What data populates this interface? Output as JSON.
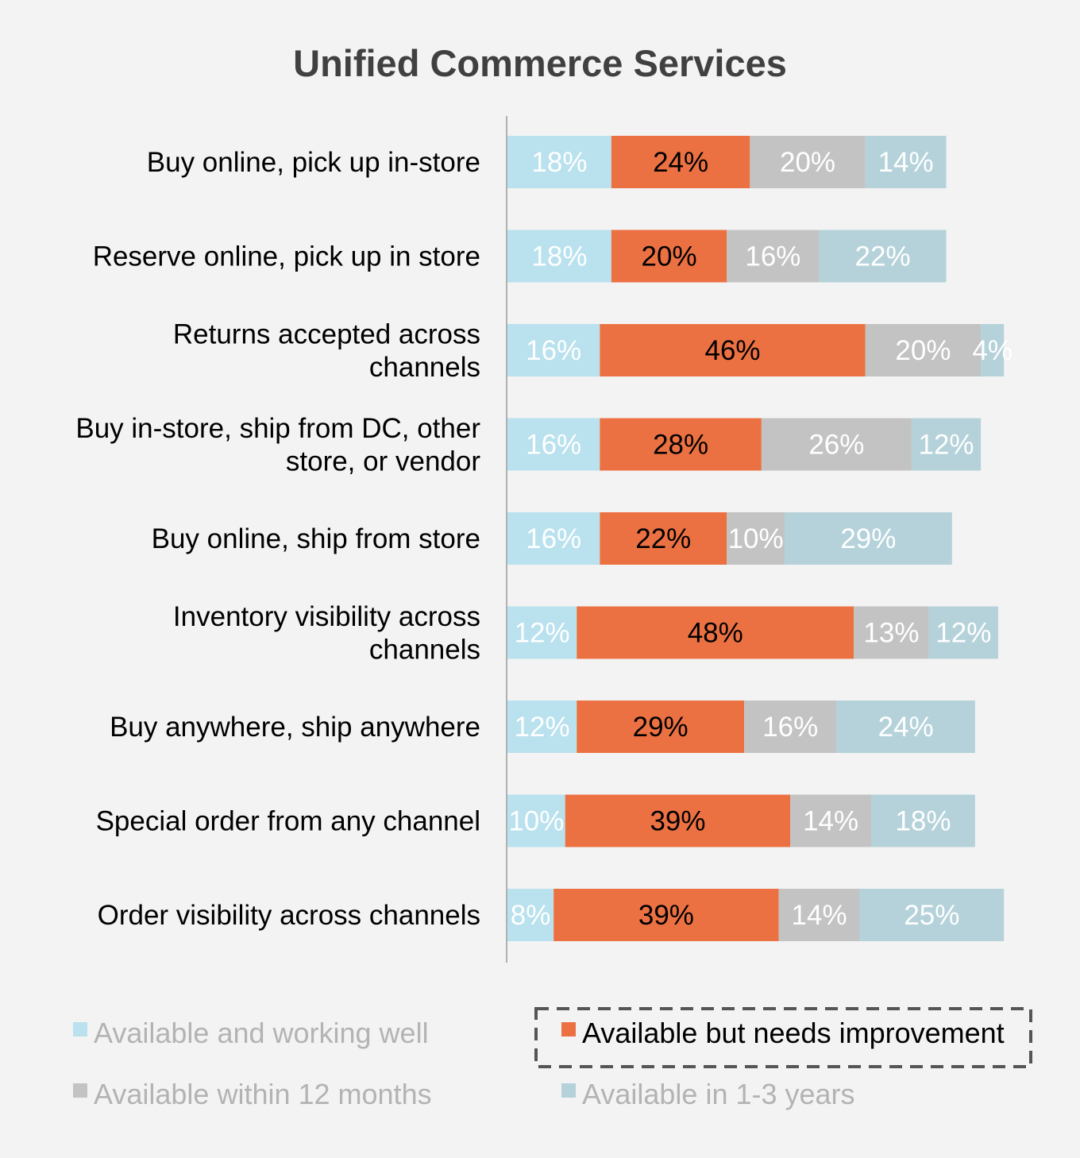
{
  "chart_data": {
    "type": "bar",
    "orientation": "horizontal",
    "stacked": true,
    "title": "Unified Commerce Services",
    "categories": [
      "Buy online, pick up in-store",
      "Reserve online, pick up in store",
      "Returns accepted across channels",
      "Buy in-store, ship from DC, other store, or vendor",
      "Buy online, ship from store",
      "Inventory visibility across channels",
      "Buy anywhere, ship anywhere",
      "Special order from any channel",
      "Order visibility across channels"
    ],
    "category_lines": [
      [
        "Buy online, pick up in-store"
      ],
      [
        "Reserve online, pick up in store"
      ],
      [
        "Returns accepted across",
        "channels"
      ],
      [
        "Buy in-store, ship from DC, other",
        "store, or vendor"
      ],
      [
        "Buy online, ship from store"
      ],
      [
        "Inventory visibility across",
        "channels"
      ],
      [
        "Buy anywhere, ship anywhere"
      ],
      [
        "Special order from any channel"
      ],
      [
        "Order visibility across channels"
      ]
    ],
    "series": [
      {
        "name": "Available and working well",
        "color": "#b9e1ee",
        "label_color": "#ffffff",
        "values": [
          18,
          18,
          16,
          16,
          16,
          12,
          12,
          10,
          8
        ],
        "labels": [
          "18%",
          "18%",
          "16%",
          "16%",
          "16%",
          "12%",
          "12%",
          "10%",
          "8%"
        ]
      },
      {
        "name": "Available but needs improvement",
        "color": "#ec7142",
        "label_color": "#000000",
        "values": [
          24,
          20,
          46,
          28,
          22,
          48,
          29,
          39,
          39
        ],
        "labels": [
          "24%",
          "20%",
          "46%",
          "28%",
          "22%",
          "48%",
          "29%",
          "39%",
          "39%"
        ]
      },
      {
        "name": "Available within 12 months",
        "color": "#c3c3c3",
        "label_color": "#ffffff",
        "values": [
          20,
          16,
          20,
          26,
          10,
          13,
          16,
          14,
          14
        ],
        "labels": [
          "20%",
          "16%",
          "20%",
          "26%",
          "10%",
          "13%",
          "16%",
          "14%",
          "14%"
        ]
      },
      {
        "name": "Available in 1-3 years",
        "color": "#b5d2da",
        "label_color": "#ffffff",
        "values": [
          14,
          22,
          4,
          12,
          29,
          12,
          24,
          18,
          25
        ],
        "labels": [
          "14%",
          "22%",
          "4%",
          "12%",
          "29%",
          "12%",
          "24%",
          "18%",
          "25%"
        ]
      }
    ],
    "legend": {
      "placement": "bottom",
      "highlighted": "Available but needs improvement",
      "order": [
        "Available and working well",
        "Available but needs improvement",
        "Available within 12 months",
        "Available in 1-3 years"
      ],
      "text_colors": [
        "#b3b3b3",
        "#000000",
        "#b3b3b3",
        "#b3b3b3"
      ]
    },
    "axis_line_color": "#b0b0b0",
    "background": "#f3f3f3"
  }
}
